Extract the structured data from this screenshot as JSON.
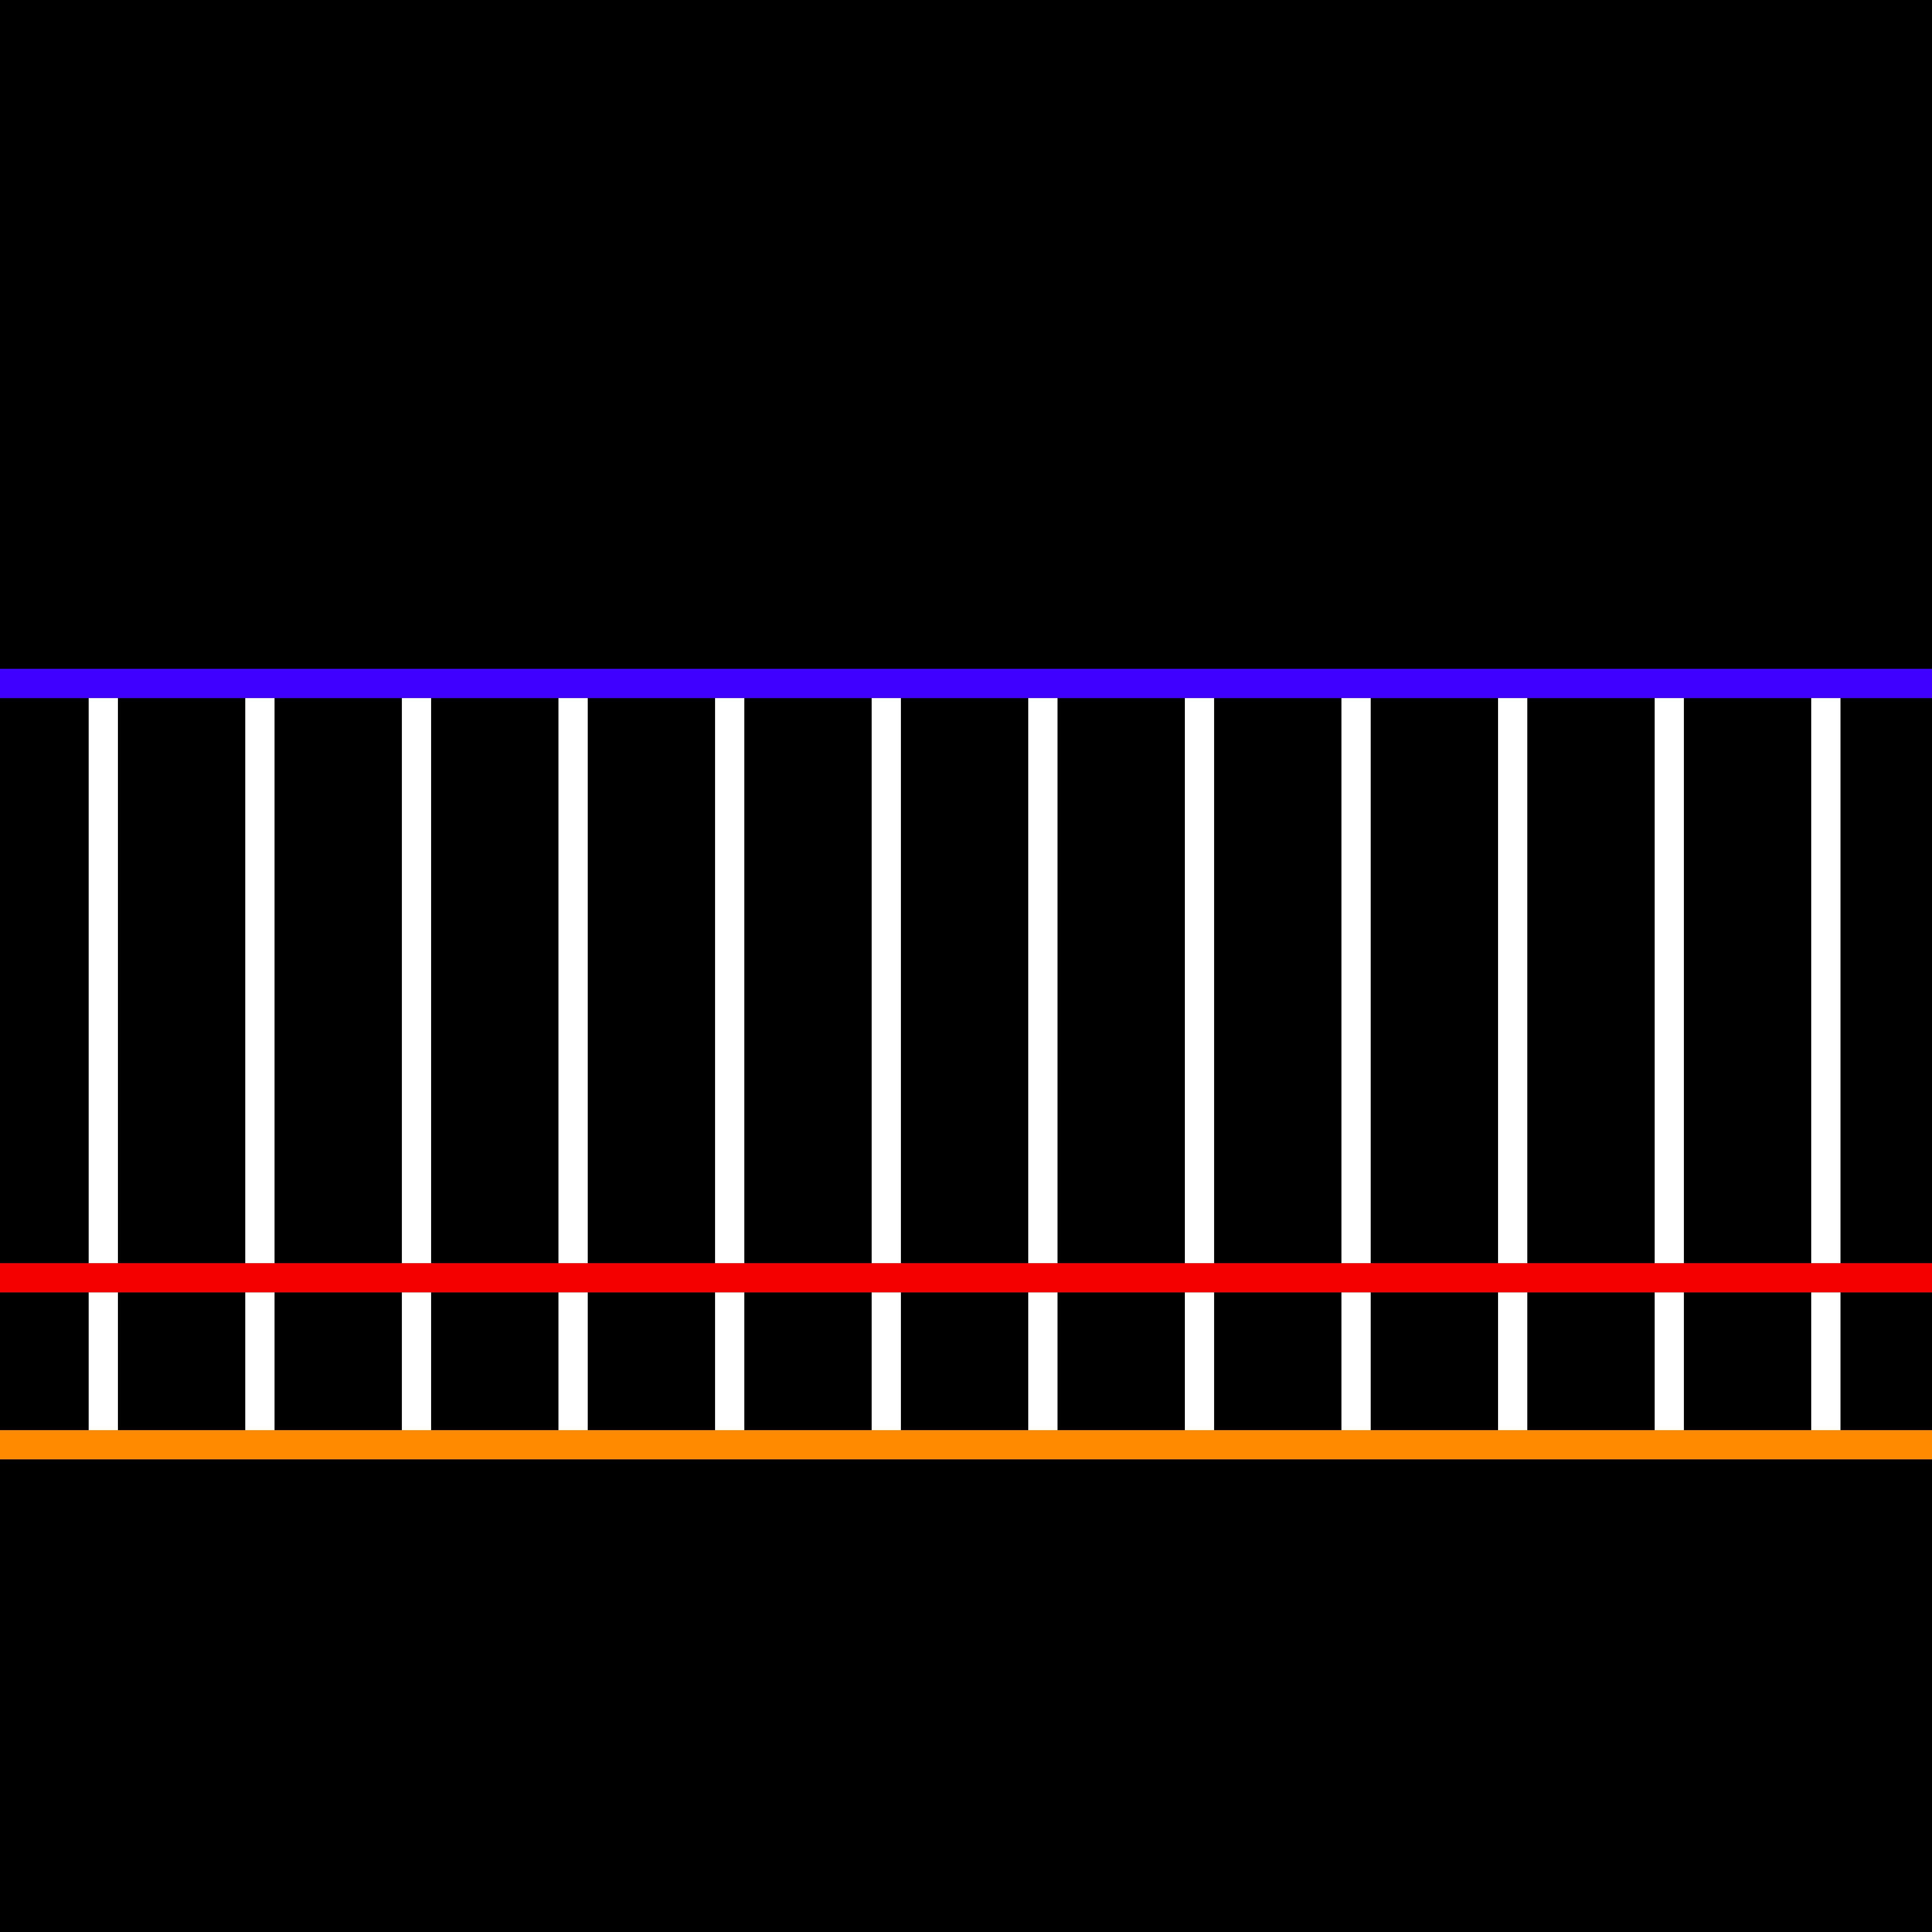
{
  "colors": {
    "background": "#000000",
    "rail_top": "#4000ff",
    "rail_middle": "#f50000",
    "rail_bottom": "#ff8a00",
    "post": "#ffffff"
  },
  "post_count": 12,
  "rails": [
    {
      "id": "top",
      "color_key": "rail_top"
    },
    {
      "id": "middle",
      "color_key": "rail_middle"
    },
    {
      "id": "bottom",
      "color_key": "rail_bottom"
    }
  ]
}
